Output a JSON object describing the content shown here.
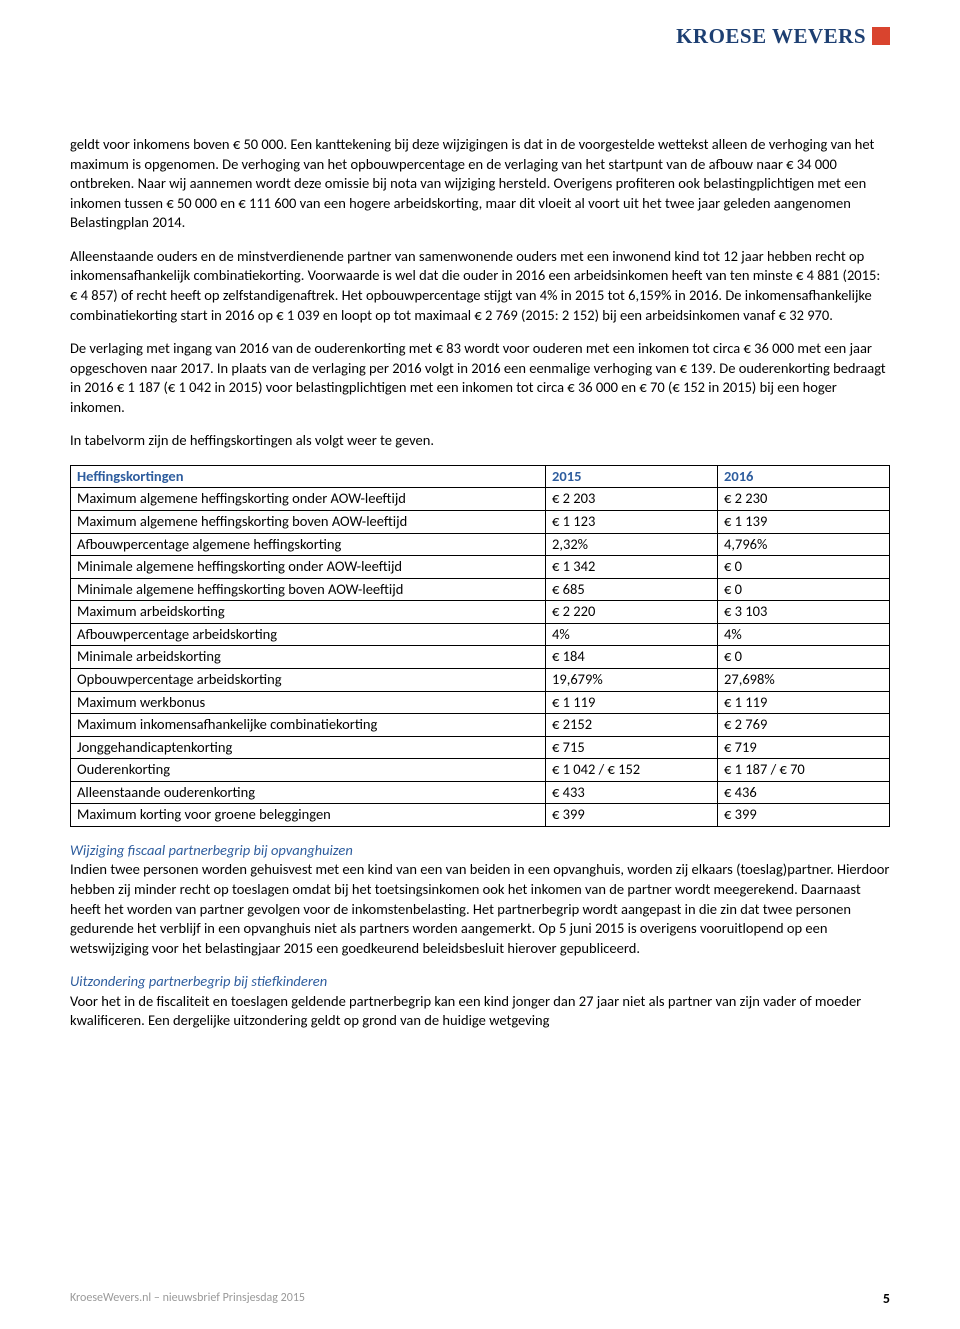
{
  "logo_text": "KROESE WEVERS",
  "paragraphs": {
    "p1": "geldt voor inkomens boven € 50 000. Een kanttekening bij deze wijzigingen is dat in de voorgestelde wettekst alleen de verhoging van het maximum is opgenomen. De verhoging van het opbouwpercentage en de verlaging van het startpunt van de afbouw naar € 34 000 ontbreken. Naar wij aannemen wordt deze omissie bij nota van wijziging hersteld. Overigens profiteren ook belastingplichtigen met een inkomen tussen € 50 000 en € 111 600 van een hogere arbeidskorting, maar dit vloeit al voort uit het twee jaar geleden aangenomen Belastingplan 2014.",
    "p2": "Alleenstaande ouders en de minstverdienende partner van samenwonende ouders met een inwonend kind tot 12 jaar hebben recht op inkomensafhankelijk combinatiekorting. Voorwaarde is wel dat die ouder in 2016 een arbeidsinkomen heeft van ten minste € 4 881 (2015: € 4 857) of recht heeft op zelfstandigenaftrek. Het opbouwpercentage stijgt van 4% in 2015 tot 6,159% in 2016. De inkomensafhankelijke combinatiekorting start in 2016 op € 1 039 en loopt op tot maximaal € 2 769 (2015: 2 152) bij een arbeidsinkomen vanaf € 32 970.",
    "p3": "De verlaging met ingang van 2016 van de ouderenkorting met € 83 wordt voor ouderen met een inkomen tot circa € 36 000 met een jaar opgeschoven naar 2017. In plaats van de verlaging per 2016 volgt in 2016 een eenmalige verhoging van € 139. De ouderenkorting bedraagt in 2016 € 1 187 (€ 1 042 in 2015) voor belastingplichtigen met een inkomen tot circa € 36 000 en € 70 (€ 152 in 2015) bij een hoger inkomen.",
    "p4": "In tabelvorm zijn de heffingskortingen als volgt weer te geven.",
    "sub1": "Wijziging fiscaal partnerbegrip bij opvanghuizen",
    "p5": "Indien twee personen worden gehuisvest met een kind van een van beiden in een opvanghuis, worden zij elkaars (toeslag)partner. Hierdoor hebben zij minder recht op toeslagen omdat bij het toetsingsinkomen ook het inkomen van de partner wordt meegerekend. Daarnaast heeft het worden van partner gevolgen voor de inkomstenbelasting. Het partnerbegrip wordt aangepast in die zin dat twee personen gedurende het verblijf in een opvanghuis niet als partners worden aangemerkt. Op 5 juni 2015 is overigens vooruitlopend op een wetswijziging voor het belastingjaar 2015 een goedkeurend beleidsbesluit hierover gepubliceerd.",
    "sub2": "Uitzondering partnerbegrip bij stiefkinderen",
    "p6": "Voor het in de fiscaliteit en toeslagen geldende partnerbegrip kan een kind jonger dan 27 jaar niet als partner van zijn vader of moeder kwalificeren. Een dergelijke uitzondering geldt op grond van de huidige wetgeving"
  },
  "table": {
    "header": {
      "c1": "Heffingskortingen",
      "c2": "2015",
      "c3": "2016"
    },
    "rows": [
      {
        "c1": "Maximum algemene heffingskorting onder AOW-leeftijd",
        "c2": "€ 2 203",
        "c3": "€ 2 230"
      },
      {
        "c1": "Maximum algemene heffingskorting boven AOW-leeftijd",
        "c2": "€ 1 123",
        "c3": "€ 1 139"
      },
      {
        "c1": "Afbouwpercentage algemene heffingskorting",
        "c2": "2,32%",
        "c3": "4,796%"
      },
      {
        "c1": "Minimale algemene heffingskorting onder AOW-leeftijd",
        "c2": "€ 1 342",
        "c3": "€ 0"
      },
      {
        "c1": "Minimale algemene heffingskorting boven AOW-leeftijd",
        "c2": "€ 685",
        "c3": "€ 0"
      },
      {
        "c1": "Maximum arbeidskorting",
        "c2": "€ 2 220",
        "c3": "€ 3 103"
      },
      {
        "c1": "Afbouwpercentage arbeidskorting",
        "c2": "4%",
        "c3": "4%"
      },
      {
        "c1": "Minimale arbeidskorting",
        "c2": "€ 184",
        "c3": "€ 0"
      },
      {
        "c1": "Opbouwpercentage arbeidskorting",
        "c2": "19,679%",
        "c3": "27,698%"
      },
      {
        "c1": "Maximum werkbonus",
        "c2": "€ 1 119",
        "c3": "€ 1 119"
      },
      {
        "c1": "Maximum inkomensafhankelijke combinatiekorting",
        "c2": "€ 2152",
        "c3": "€ 2 769"
      },
      {
        "c1": "Jonggehandicaptenkorting",
        "c2": "€ 715",
        "c3": "€ 719"
      },
      {
        "c1": "Ouderenkorting",
        "c2": "€ 1 042 / € 152",
        "c3": "€ 1 187 / € 70"
      },
      {
        "c1": "Alleenstaande ouderenkorting",
        "c2": "€ 433",
        "c3": "€ 436"
      },
      {
        "c1": "Maximum korting voor groene beleggingen",
        "c2": "€ 399",
        "c3": "€ 399"
      }
    ]
  },
  "footer": {
    "left": "KroeseWevers.nl – nieuwsbrief Prinsjesdag 2015",
    "page": "5"
  }
}
